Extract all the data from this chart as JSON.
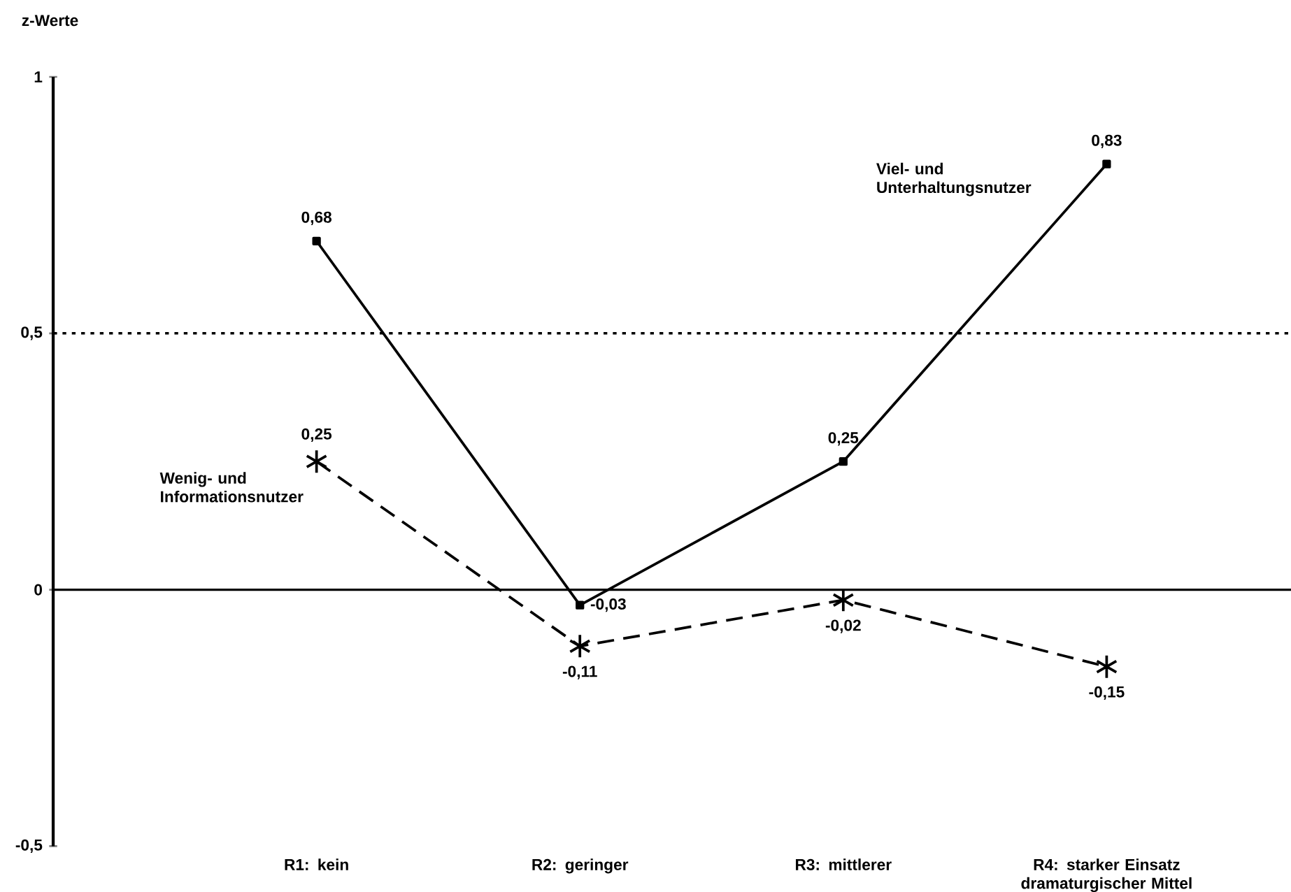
{
  "chart_data": {
    "type": "line",
    "ylabel": "z-Werte",
    "categories": [
      "R1: kein",
      "R2: geringer",
      "R3: mittlerer",
      "R4: starker Einsatz dramaturgischer Mittel"
    ],
    "series": [
      {
        "name": "Viel- und Unterhaltungsnutzer",
        "color": "#000000",
        "values": [
          0.68,
          -0.03,
          0.25,
          0.83
        ],
        "value_labels": [
          "0,68",
          "-0,03",
          "0,25",
          "0,83"
        ],
        "marker": "square",
        "line_style": "solid"
      },
      {
        "name": "Wenig- und Informationsnutzer",
        "color": "#000000",
        "values": [
          0.25,
          -0.11,
          -0.02,
          -0.15
        ],
        "value_labels": [
          "0,25",
          "-0,11",
          "-0,02",
          "-0,15"
        ],
        "marker": "cross",
        "line_style": "dashed"
      }
    ],
    "ylim": [
      -0.5,
      1
    ],
    "yticks": [
      {
        "value": -0.5,
        "label": "-0,5"
      },
      {
        "value": 0,
        "label": "0"
      },
      {
        "value": 0.5,
        "label": "0,5"
      },
      {
        "value": 1,
        "label": "1"
      }
    ],
    "ref_lines": [
      {
        "axis": "y",
        "value": 0.5,
        "line_style": "dotted"
      },
      {
        "axis": "y",
        "value": 0,
        "line_style": "solid"
      }
    ],
    "grid": false
  }
}
